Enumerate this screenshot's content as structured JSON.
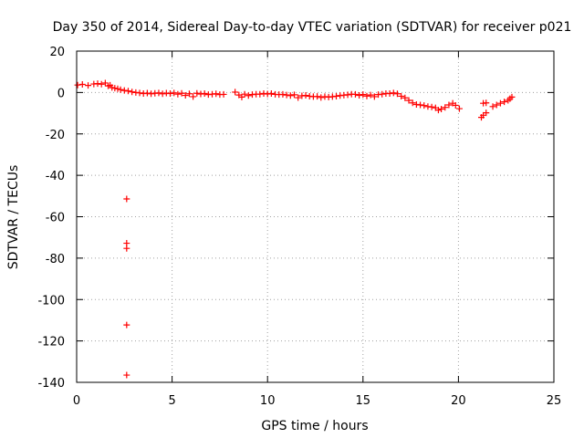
{
  "chart_data": {
    "type": "scatter",
    "title": "Day 350 of 2014, Sidereal Day-to-day VTEC variation (SDTVAR) for receiver p021",
    "xlabel": "GPS time / hours",
    "ylabel": "SDTVAR / TECUs",
    "xlim": [
      0,
      25
    ],
    "ylim": [
      -140,
      20
    ],
    "xticks": [
      0,
      5,
      10,
      15,
      20,
      25
    ],
    "yticks": [
      -140,
      -120,
      -100,
      -80,
      -60,
      -40,
      -20,
      0,
      20
    ],
    "grid": true,
    "marker": "+",
    "color": "#ff0000",
    "series": [
      {
        "name": "SDTVAR",
        "points": [
          [
            0.05,
            3.6
          ],
          [
            0.3,
            3.9
          ],
          [
            0.6,
            3.4
          ],
          [
            0.9,
            4.1
          ],
          [
            1.1,
            4.3
          ],
          [
            1.3,
            4.0
          ],
          [
            1.5,
            4.6
          ],
          [
            1.65,
            3.2
          ],
          [
            1.75,
            3.5
          ],
          [
            1.85,
            2.4
          ],
          [
            2.0,
            2.1
          ],
          [
            2.15,
            1.8
          ],
          [
            2.3,
            1.4
          ],
          [
            2.5,
            1.0
          ],
          [
            2.7,
            0.7
          ],
          [
            2.9,
            0.3
          ],
          [
            3.1,
            0.0
          ],
          [
            3.3,
            -0.2
          ],
          [
            3.5,
            -0.5
          ],
          [
            3.7,
            -0.3
          ],
          [
            3.9,
            -0.6
          ],
          [
            4.1,
            -0.4
          ],
          [
            4.3,
            -0.2
          ],
          [
            4.5,
            -0.6
          ],
          [
            4.7,
            -0.3
          ],
          [
            4.9,
            -0.5
          ],
          [
            5.1,
            -0.2
          ],
          [
            5.3,
            -0.8
          ],
          [
            5.5,
            -0.4
          ],
          [
            5.7,
            -1.4
          ],
          [
            5.9,
            -0.6
          ],
          [
            6.1,
            -2.0
          ],
          [
            6.3,
            -0.4
          ],
          [
            6.5,
            -0.7
          ],
          [
            6.7,
            -0.5
          ],
          [
            6.9,
            -1.0
          ],
          [
            7.1,
            -0.8
          ],
          [
            7.3,
            -0.6
          ],
          [
            7.5,
            -1.0
          ],
          [
            7.7,
            -0.9
          ],
          [
            8.3,
            0.2
          ],
          [
            8.5,
            -1.2
          ],
          [
            8.65,
            -2.2
          ],
          [
            8.8,
            -0.8
          ],
          [
            9.0,
            -1.5
          ],
          [
            9.2,
            -1.0
          ],
          [
            9.4,
            -0.8
          ],
          [
            9.6,
            -0.8
          ],
          [
            9.8,
            -0.5
          ],
          [
            10.0,
            -0.7
          ],
          [
            10.2,
            -0.5
          ],
          [
            10.4,
            -0.9
          ],
          [
            10.6,
            -1.0
          ],
          [
            10.8,
            -0.9
          ],
          [
            11.0,
            -1.2
          ],
          [
            11.2,
            -1.5
          ],
          [
            11.4,
            -1.1
          ],
          [
            11.6,
            -2.5
          ],
          [
            11.8,
            -1.6
          ],
          [
            12.0,
            -1.4
          ],
          [
            12.2,
            -1.8
          ],
          [
            12.4,
            -2.0
          ],
          [
            12.6,
            -1.9
          ],
          [
            12.8,
            -2.4
          ],
          [
            13.0,
            -2.0
          ],
          [
            13.2,
            -2.2
          ],
          [
            13.4,
            -2.0
          ],
          [
            13.6,
            -1.8
          ],
          [
            13.8,
            -1.5
          ],
          [
            14.0,
            -1.3
          ],
          [
            14.2,
            -1.1
          ],
          [
            14.4,
            -0.8
          ],
          [
            14.6,
            -0.9
          ],
          [
            14.8,
            -1.4
          ],
          [
            15.0,
            -1.0
          ],
          [
            15.2,
            -1.7
          ],
          [
            15.4,
            -1.2
          ],
          [
            15.6,
            -2.0
          ],
          [
            15.8,
            -1.0
          ],
          [
            16.0,
            -0.8
          ],
          [
            16.2,
            -0.5
          ],
          [
            16.4,
            -0.5
          ],
          [
            16.6,
            -0.2
          ],
          [
            16.8,
            -0.6
          ],
          [
            17.0,
            -1.8
          ],
          [
            17.2,
            -2.6
          ],
          [
            17.4,
            -3.8
          ],
          [
            17.6,
            -5.0
          ],
          [
            17.8,
            -5.8
          ],
          [
            18.0,
            -6.0
          ],
          [
            18.2,
            -6.3
          ],
          [
            18.4,
            -6.8
          ],
          [
            18.6,
            -7.0
          ],
          [
            18.8,
            -7.4
          ],
          [
            18.95,
            -8.5
          ],
          [
            19.1,
            -8.0
          ],
          [
            19.3,
            -7.2
          ],
          [
            19.5,
            -6.0
          ],
          [
            19.7,
            -5.2
          ],
          [
            19.85,
            -6.2
          ],
          [
            20.05,
            -7.8
          ],
          [
            21.2,
            -12.0
          ],
          [
            21.3,
            -11.0
          ],
          [
            21.45,
            -9.8
          ],
          [
            21.3,
            -5.2
          ],
          [
            21.45,
            -5.0
          ],
          [
            21.8,
            -6.8
          ],
          [
            22.0,
            -6.0
          ],
          [
            22.2,
            -5.2
          ],
          [
            22.4,
            -4.5
          ],
          [
            22.6,
            -3.8
          ],
          [
            22.7,
            -3.0
          ],
          [
            22.8,
            -2.2
          ],
          [
            2.62,
            -51.4
          ],
          [
            2.62,
            -72.8
          ],
          [
            2.62,
            -75.3
          ],
          [
            2.62,
            -112.3
          ],
          [
            2.62,
            -136.5
          ]
        ]
      }
    ]
  }
}
